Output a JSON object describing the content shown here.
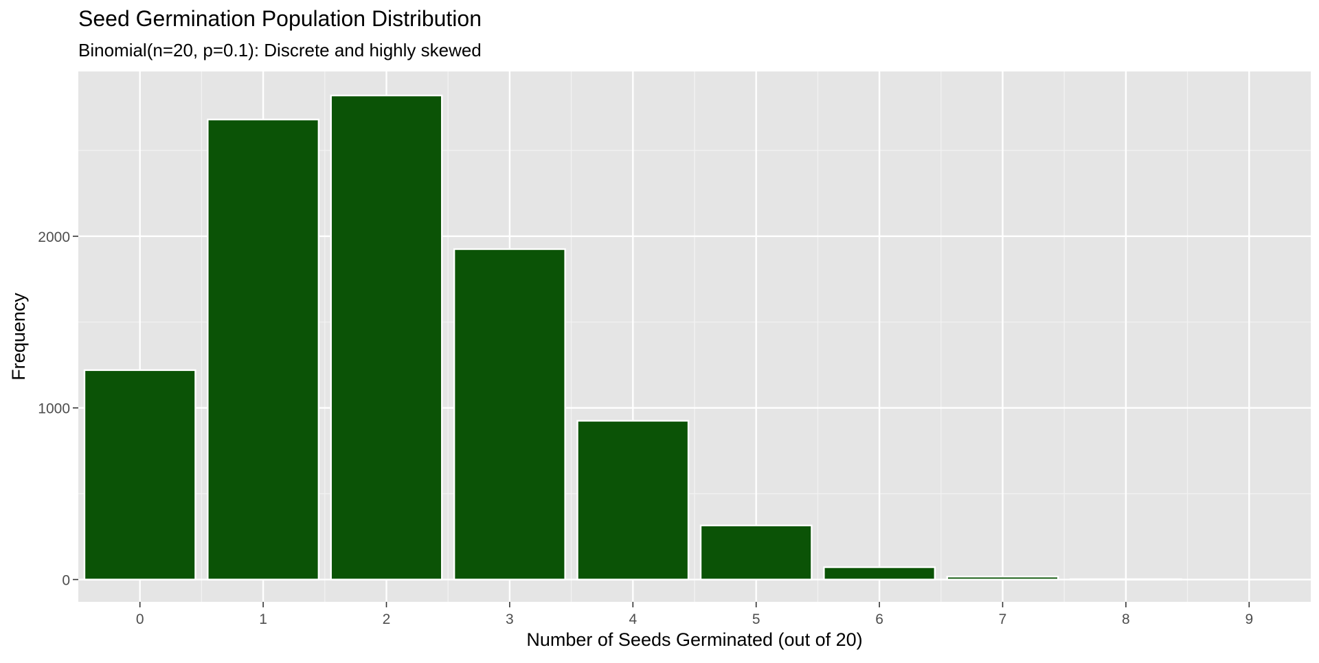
{
  "chart_data": {
    "type": "bar",
    "title": "Seed Germination Population Distribution",
    "subtitle": "Binomial(n=20, p=0.1): Discrete and highly skewed",
    "xlabel": "Number of Seeds Germinated (out of 20)",
    "ylabel": "Frequency",
    "categories": [
      "0",
      "1",
      "2",
      "3",
      "4",
      "5",
      "6",
      "7",
      "8",
      "9"
    ],
    "values": [
      1220,
      2680,
      2820,
      1925,
      925,
      315,
      72,
      17,
      2,
      0
    ],
    "x_tick_labels": [
      "0",
      "1",
      "2",
      "3",
      "4",
      "5",
      "6",
      "7",
      "8",
      "9"
    ],
    "y_ticks": [
      0,
      1000,
      2000
    ],
    "y_tick_labels": [
      "0",
      "1000",
      "2000"
    ],
    "xlim": [
      -0.5,
      9.5
    ],
    "ylim": [
      -130,
      2960
    ],
    "grid": true,
    "legend": "none",
    "colors": {
      "bar_fill": "#0b5306",
      "bar_outline": "#ffffff",
      "panel_background": "#e5e5e5",
      "grid_major": "#ffffff",
      "grid_minor": "#f2f2f2",
      "tick_text": "#4d4d4d",
      "title_text": "#000000"
    }
  }
}
